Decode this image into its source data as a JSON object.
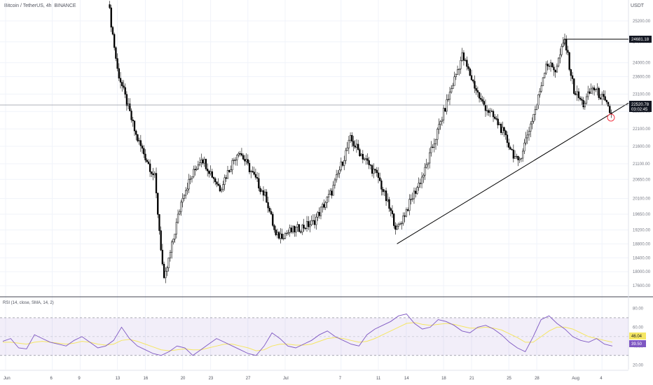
{
  "header": {
    "symbol": "Bitcoin / TetherUS, 4h, BINANCE",
    "currency": "USDT"
  },
  "colors": {
    "candle": "#000000",
    "grid": "#f0f3fa",
    "trendline": "#000000",
    "rsi_line": "#7e57c2",
    "rsi_ma": "#f5e663",
    "rsi_band": "#7e57c2",
    "price_badge": "#131722",
    "rsi_badge": "#7e57c2",
    "rsi_ma_badge": "#f5e663",
    "circle": "#f23645"
  },
  "chart_data": [
    {
      "type": "candlestick",
      "title": "Bitcoin / TetherUS, 4h, BINANCE",
      "ylim": [
        17300,
        25800
      ],
      "y_ticks": [
        "25200.00",
        "24600.00",
        "24000.00",
        "23600.00",
        "23100.00",
        "22600.00",
        "22100.00",
        "21600.00",
        "21100.00",
        "20650.00",
        "20100.00",
        "19650.00",
        "19200.00",
        "18800.00",
        "18400.00",
        "18000.00",
        "17600.00"
      ],
      "x_ticks": [
        "Jun",
        "6",
        "9",
        "13",
        "16",
        "20",
        "23",
        "27",
        "Jul",
        "7",
        "11",
        "14",
        "18",
        "21",
        "25",
        "28",
        "Aug",
        "4"
      ],
      "last_price": "22520.78",
      "countdown": "03:02:45",
      "high_marker": "24681.18",
      "key_points": [
        {
          "date": "Jun 12",
          "value": 25800
        },
        {
          "date": "Jun 13",
          "value": 23800
        },
        {
          "date": "Jun 15",
          "value": 21900
        },
        {
          "date": "Jun 17",
          "value": 20700
        },
        {
          "date": "Jun 18",
          "value": 17700
        },
        {
          "date": "Jun 20",
          "value": 20200
        },
        {
          "date": "Jun 22",
          "value": 21300
        },
        {
          "date": "Jun 24",
          "value": 20400
        },
        {
          "date": "Jun 26",
          "value": 21500
        },
        {
          "date": "Jun 29",
          "value": 20100
        },
        {
          "date": "Jun 30",
          "value": 19000
        },
        {
          "date": "Jul 2",
          "value": 19200
        },
        {
          "date": "Jul 4",
          "value": 19400
        },
        {
          "date": "Jul 6",
          "value": 20300
        },
        {
          "date": "Jul 8",
          "value": 21800
        },
        {
          "date": "Jul 11",
          "value": 20700
        },
        {
          "date": "Jul 13",
          "value": 19200
        },
        {
          "date": "Jul 16",
          "value": 20900
        },
        {
          "date": "Jul 19",
          "value": 23400
        },
        {
          "date": "Jul 20",
          "value": 24200
        },
        {
          "date": "Jul 22",
          "value": 22900
        },
        {
          "date": "Jul 24",
          "value": 22200
        },
        {
          "date": "Jul 26",
          "value": 21100
        },
        {
          "date": "Jul 28",
          "value": 22800
        },
        {
          "date": "Jul 29",
          "value": 24000
        },
        {
          "date": "Jul 30",
          "value": 23800
        },
        {
          "date": "Jul 31",
          "value": 24650
        },
        {
          "date": "Aug 1",
          "value": 23200
        },
        {
          "date": "Aug 2",
          "value": 22800
        },
        {
          "date": "Aug 3",
          "value": 23300
        },
        {
          "date": "Aug 4",
          "value": 23000
        },
        {
          "date": "Aug 5",
          "value": 22520
        }
      ],
      "trendline": [
        {
          "date": "Jul 13",
          "value": 18800
        },
        {
          "date": "Aug 5",
          "value": 22400
        }
      ]
    },
    {
      "type": "line",
      "title": "RSI (14, close, SMA, 14, 2)",
      "ylim": [
        15,
        90
      ],
      "y_ticks": [
        "80.00",
        "60.00",
        "40.00",
        "20.00"
      ],
      "band": [
        30,
        70
      ],
      "rsi_value": "46.04",
      "rsi_ma_value": "39.50",
      "series": [
        {
          "values": [
            45,
            48,
            38,
            37,
            52,
            48,
            44,
            42,
            40,
            46,
            50,
            44,
            38,
            40,
            46,
            60,
            48,
            40,
            36,
            32,
            30,
            34,
            40,
            38,
            30,
            36,
            42,
            48,
            44,
            40,
            36,
            32,
            30,
            40,
            54,
            48,
            40,
            38,
            42,
            46,
            52,
            56,
            50,
            46,
            42,
            40,
            52,
            58,
            62,
            66,
            72,
            74,
            64,
            58,
            60,
            68,
            66,
            62,
            56,
            54,
            60,
            62,
            58,
            52,
            44,
            38,
            34,
            50,
            68,
            72,
            64,
            58,
            50,
            46,
            44,
            48,
            42,
            40
          ]
        },
        {
          "values": [
            44,
            44,
            43,
            42,
            44,
            45,
            44,
            43,
            42,
            43,
            45,
            44,
            42,
            41,
            42,
            46,
            47,
            45,
            42,
            39,
            36,
            35,
            36,
            37,
            36,
            36,
            38,
            40,
            42,
            42,
            40,
            38,
            35,
            36,
            40,
            42,
            42,
            41,
            41,
            42,
            45,
            48,
            49,
            48,
            46,
            44,
            45,
            48,
            52,
            56,
            60,
            64,
            65,
            63,
            62,
            63,
            64,
            63,
            61,
            59,
            59,
            60,
            59,
            57,
            53,
            49,
            44,
            44,
            50,
            56,
            60,
            60,
            58,
            54,
            50,
            48,
            46,
            44
          ]
        }
      ]
    }
  ]
}
